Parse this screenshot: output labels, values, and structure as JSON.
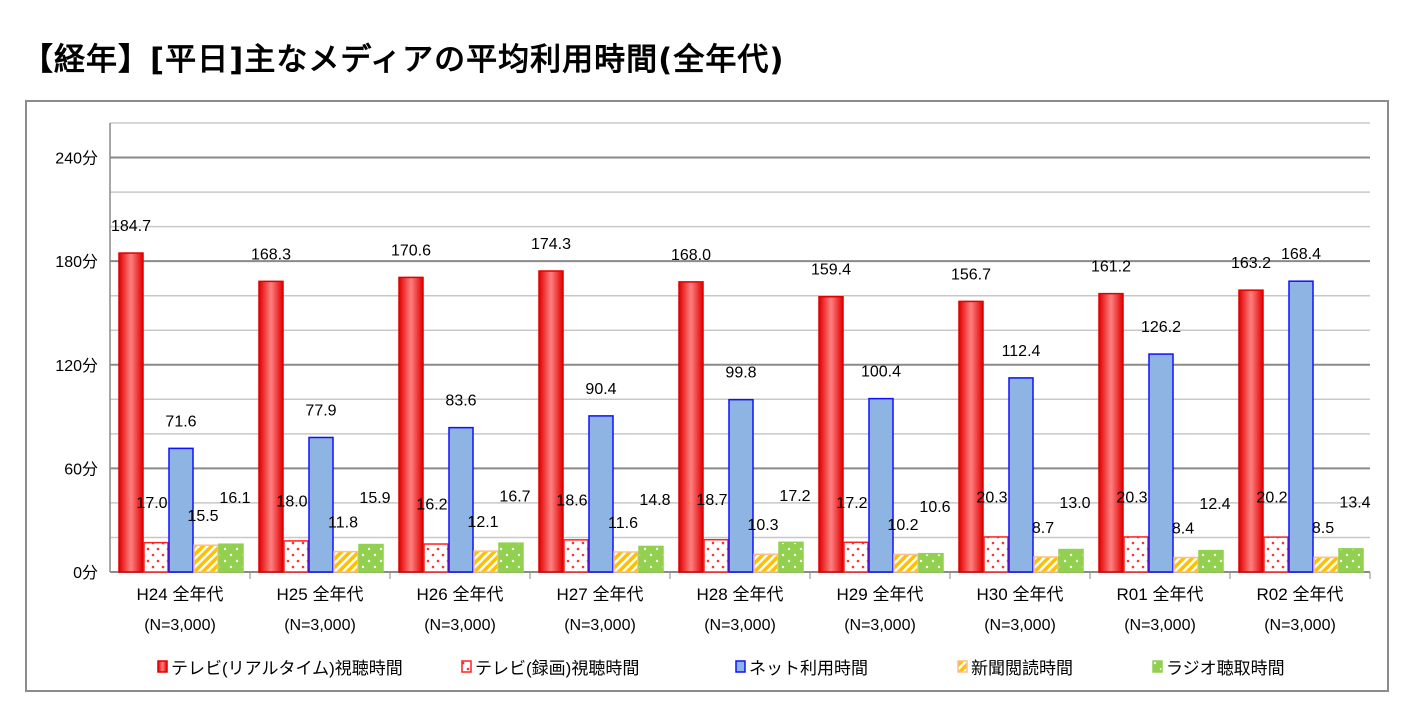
{
  "title": "【経年】[平日]主なメディアの平均利用時間(全年代)",
  "chart_data": {
    "type": "bar",
    "title": "【経年】[平日]主なメディアの平均利用時間(全年代)",
    "categories": [
      "H24 全年代",
      "H25 全年代",
      "H26 全年代",
      "H27 全年代",
      "H28 全年代",
      "H29 全年代",
      "H30 全年代",
      "R01 全年代",
      "R02 全年代"
    ],
    "category_sublabel": "(N=3,000)",
    "ylim": [
      0,
      260
    ],
    "yticks": [
      0,
      60,
      120,
      180,
      240
    ],
    "ytick_labels": [
      "0分",
      "60分",
      "120分",
      "180分",
      "240分"
    ],
    "grid": true,
    "legend_position": "bottom",
    "series": [
      {
        "name": "テレビ(リアルタイム)視聴時間",
        "color": "#ff0000",
        "values": [
          184.7,
          168.3,
          170.6,
          174.3,
          168.0,
          159.4,
          156.7,
          161.2,
          163.2
        ]
      },
      {
        "name": "テレビ(録画)視聴時間",
        "color": "#ff3333",
        "values": [
          17.0,
          18.0,
          16.2,
          18.6,
          18.7,
          17.2,
          20.3,
          20.3,
          20.2
        ]
      },
      {
        "name": "ネット利用時間",
        "color": "#8db4e2",
        "values": [
          71.6,
          77.9,
          83.6,
          90.4,
          99.8,
          100.4,
          112.4,
          126.2,
          168.4
        ]
      },
      {
        "name": "新聞閲読時間",
        "color": "#ffc000",
        "values": [
          15.5,
          11.8,
          12.1,
          11.6,
          10.3,
          10.2,
          8.7,
          8.4,
          8.5
        ]
      },
      {
        "name": "ラジオ聴取時間",
        "color": "#92d050",
        "values": [
          16.1,
          15.9,
          16.7,
          14.8,
          17.2,
          10.6,
          13.0,
          12.4,
          13.4
        ]
      }
    ]
  }
}
